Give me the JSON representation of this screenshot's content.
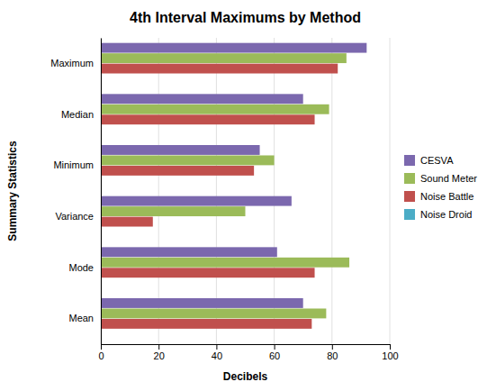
{
  "chart_data": {
    "type": "bar",
    "orientation": "horizontal",
    "title": "4th Interval Maximums by Method",
    "xlabel": "Decibels",
    "ylabel": "Summary Statistics",
    "categories": [
      "Mean",
      "Mode",
      "Variance",
      "Minimum",
      "Median",
      "Maximum"
    ],
    "series": [
      {
        "name": "CESVA",
        "color": "#7B68AE",
        "values": [
          70,
          61,
          66,
          55,
          70,
          92
        ]
      },
      {
        "name": "Sound Meter",
        "color": "#9BBB59",
        "values": [
          78,
          86,
          50,
          60,
          79,
          85
        ]
      },
      {
        "name": "Noise Battle",
        "color": "#C0504D",
        "values": [
          73,
          74,
          18,
          53,
          74,
          82
        ]
      },
      {
        "name": "Noise Droid",
        "color": "#4BACC6",
        "values": [
          0,
          0,
          0,
          0,
          0,
          0
        ]
      }
    ],
    "xlim": [
      0,
      100
    ],
    "xticks": [
      0,
      20,
      40,
      60,
      80,
      100
    ],
    "grid": true,
    "legend": "right"
  }
}
